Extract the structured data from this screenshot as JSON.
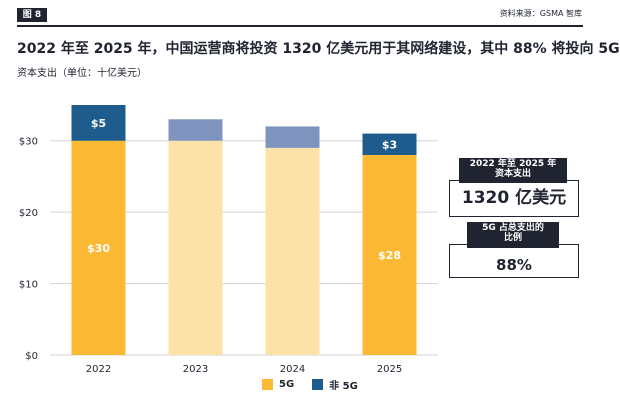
{
  "figure_label": "图 8",
  "source": "资料来源：GSMA 智库",
  "title": "2022 年至 2025 年，中国运营商将投资 1320 亿美元用于其网络建设，其中 88% 将投向 5G",
  "subtitle": "资本支出（单位：十亿美元）",
  "callout_total": {
    "heading_line1": "2022 年至 2025 年",
    "heading_line2": "资本支出",
    "value": "1320 亿美元"
  },
  "callout_share": {
    "heading_line1": "5G 占总支出的",
    "heading_line2": "比例",
    "value": "88%"
  },
  "colors": {
    "5g_labeled": "#fbb934",
    "5g_plain": "#fce2a8",
    "non5g_labeled": "#1d5c8c",
    "non5g_plain": "#7e94bf",
    "grid": "#d3d3d3",
    "ink": "#1f2430"
  },
  "chart_data": {
    "type": "bar",
    "stacked": true,
    "categories": [
      "2022",
      "2023",
      "2024",
      "2025"
    ],
    "series": [
      {
        "name": "5G",
        "values": [
          30,
          30,
          29,
          28
        ]
      },
      {
        "name": "非 5G",
        "values": [
          5,
          3,
          3,
          3
        ]
      }
    ],
    "data_labels": [
      {
        "category": "2022",
        "series": "5G",
        "text": "$30"
      },
      {
        "category": "2022",
        "series": "非 5G",
        "text": "$5"
      },
      {
        "category": "2025",
        "series": "5G",
        "text": "$28"
      },
      {
        "category": "2025",
        "series": "非 5G",
        "text": "$3"
      }
    ],
    "yticks": [
      0,
      10,
      20,
      30
    ],
    "ytick_labels": [
      "$0",
      "$10",
      "$20",
      "$30"
    ],
    "ylim": [
      0,
      35
    ],
    "grid": true,
    "legend": [
      "5G",
      "非 5G"
    ],
    "legend_position": "bottom",
    "title": "",
    "xlabel": "",
    "ylabel": ""
  }
}
